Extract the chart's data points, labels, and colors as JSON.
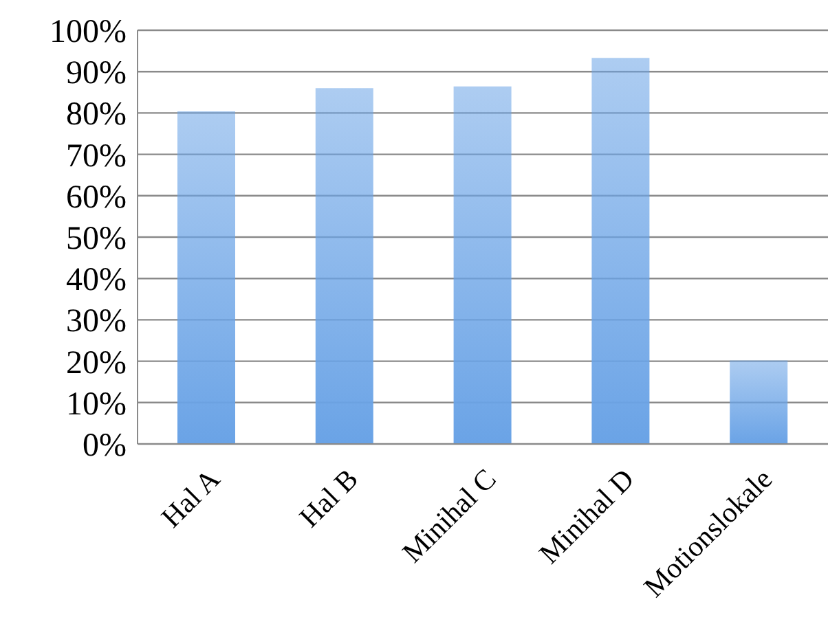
{
  "chart_data": {
    "type": "bar",
    "categories": [
      "Hal A",
      "Hal B",
      "Minihal C",
      "Minihal D",
      "Motionslokale"
    ],
    "values": [
      80.4,
      86,
      86.4,
      93.3,
      20.2
    ],
    "color": "#6aa3e6",
    "ylim": [
      0,
      100
    ],
    "yticks": [
      {
        "value": 0,
        "label": "0%"
      },
      {
        "value": 10,
        "label": "10%"
      },
      {
        "value": 20,
        "label": "20%"
      },
      {
        "value": 30,
        "label": "30%"
      },
      {
        "value": 40,
        "label": "40%"
      },
      {
        "value": 50,
        "label": "50%"
      },
      {
        "value": 60,
        "label": "60%"
      },
      {
        "value": 70,
        "label": "70%"
      },
      {
        "value": 80,
        "label": "80%"
      },
      {
        "value": 90,
        "label": "90%"
      },
      {
        "value": 100,
        "label": "100%"
      }
    ],
    "grid": "y"
  }
}
